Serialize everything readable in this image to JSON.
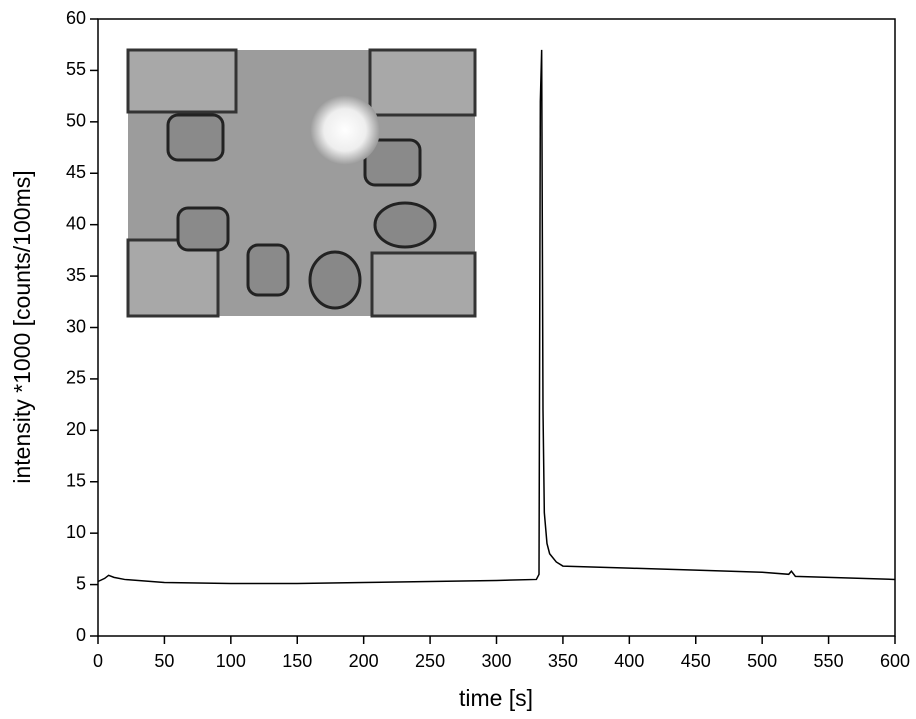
{
  "chart_data": {
    "type": "line",
    "x_label": "time [s]",
    "y_label": "intensity *1000 [counts/100ms]",
    "x": [
      0,
      5,
      8,
      12,
      20,
      50,
      100,
      150,
      200,
      250,
      300,
      330,
      332,
      333,
      334,
      335,
      336,
      338,
      340,
      345,
      350,
      400,
      450,
      500,
      520,
      522,
      525,
      550,
      600
    ],
    "series": [
      {
        "name": "intensity",
        "color": "#000000",
        "values": [
          5.3,
          5.6,
          5.9,
          5.7,
          5.5,
          5.2,
          5.1,
          5.1,
          5.2,
          5.3,
          5.4,
          5.5,
          6,
          52,
          57,
          22,
          12,
          9,
          8,
          7.2,
          6.8,
          6.6,
          6.4,
          6.2,
          6.0,
          6.3,
          5.8,
          5.7,
          5.5
        ]
      }
    ],
    "xlim": [
      0,
      600
    ],
    "xticks": [
      0,
      50,
      100,
      150,
      200,
      250,
      300,
      350,
      400,
      450,
      500,
      550,
      600
    ],
    "ylim": [
      0,
      60
    ],
    "yticks": [
      0,
      5,
      10,
      15,
      20,
      25,
      30,
      35,
      40,
      45,
      50,
      55,
      60
    ],
    "grid": false
  }
}
